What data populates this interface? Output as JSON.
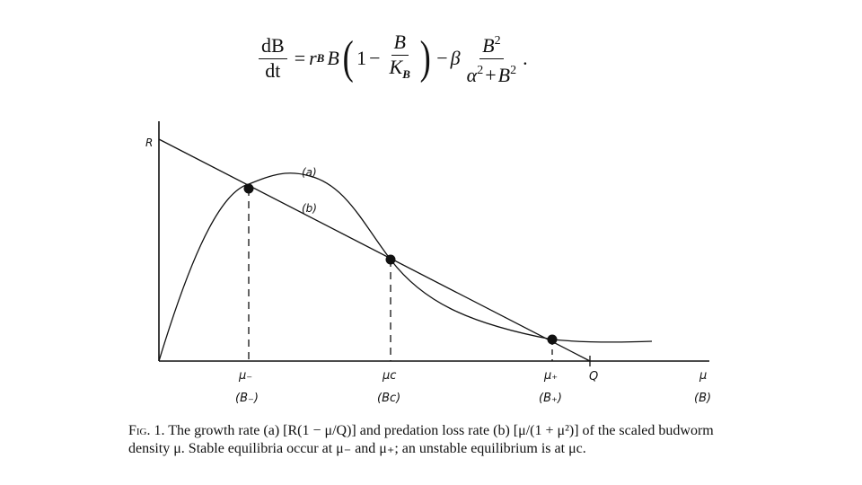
{
  "equation": {
    "lhs_num": "dB",
    "lhs_den": "dt",
    "eq": "=",
    "r": "r",
    "r_sub": "B",
    "B": "B",
    "one": "1",
    "minus": "−",
    "frac1_num": "B",
    "frac1_den": "K",
    "frac1_den_sub": "B",
    "beta": "β",
    "frac2_num": "B",
    "frac2_num_sup": "2",
    "frac2_den_a": "α",
    "frac2_den_a_sup": "2",
    "frac2_den_plus": "+",
    "frac2_den_B": "B",
    "frac2_den_B_sup": "2",
    "end": "."
  },
  "figure": {
    "y_axis_label": "R",
    "curve_a_label": "(a)",
    "curve_b_label": "(b)",
    "q_label": "Q",
    "x_ticks": [
      {
        "mu": "μ₋",
        "b": "(B₋)"
      },
      {
        "mu": "μc",
        "b": "(Bc)"
      },
      {
        "mu": "μ₊",
        "b": "(B₊)"
      }
    ],
    "x_axis_mu": "μ",
    "x_axis_b": "(B)"
  },
  "caption": {
    "fig_label": "Fig. 1.",
    "text": " The growth rate (a) [R(1 − μ/Q)] and predation loss rate (b) [μ/(1 + μ²)] of the scaled budworm density μ. Stable equilibria occur at μ₋ and μ₊; an unstable equilibrium is at μc."
  }
}
